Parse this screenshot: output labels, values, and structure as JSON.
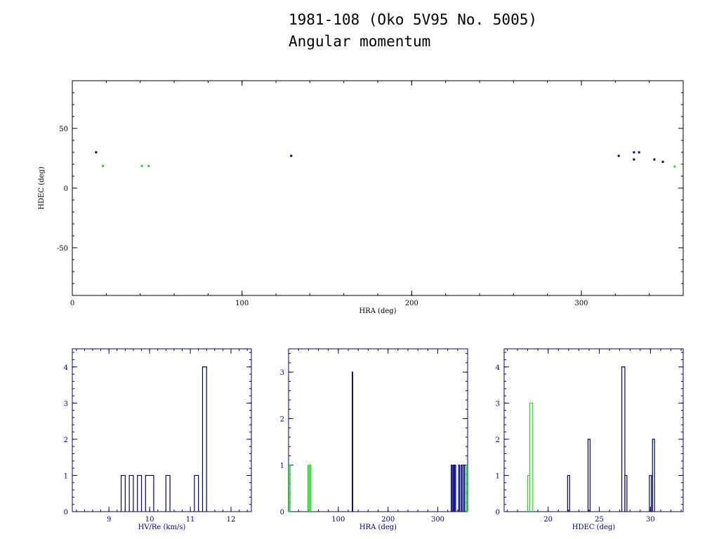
{
  "title": "1981-108 (Oko 5V95 No. 5005)",
  "subtitle": "Angular momentum",
  "colors": {
    "primary": "#000080",
    "secondary": "#22dd22",
    "axis_main": "#000000",
    "axis_hist": "#00008b"
  },
  "chart_data": [
    {
      "type": "scatter",
      "xlabel": "HRA (deg)",
      "ylabel": "HDEC (deg)",
      "xlim": [
        0,
        360
      ],
      "ylim": [
        -90,
        90
      ],
      "xticks": [
        0,
        100,
        200,
        300
      ],
      "yticks": [
        -50,
        0,
        50
      ],
      "series": [
        {
          "color": "#000080",
          "points": [
            [
              14,
              30
            ],
            [
              129,
              27
            ],
            [
              322,
              27
            ],
            [
              331,
              30
            ],
            [
              331,
              24
            ],
            [
              334,
              30
            ],
            [
              343,
              24
            ],
            [
              348,
              22
            ]
          ]
        },
        {
          "color": "#22dd22",
          "points": [
            [
              18,
              18.5
            ],
            [
              41,
              18.5
            ],
            [
              45,
              18.5
            ],
            [
              355,
              18
            ]
          ]
        }
      ]
    },
    {
      "type": "bar",
      "xlabel": "HV/Re (km/s)",
      "xlim": [
        8.1,
        12.5
      ],
      "ylim": [
        0,
        4.5
      ],
      "xticks": [
        9,
        10,
        11,
        12
      ],
      "yticks": [
        0,
        1,
        2,
        3,
        4
      ],
      "series": [
        {
          "color": "#000080",
          "bins": [
            [
              9.3,
              9.4,
              1
            ],
            [
              9.5,
              9.6,
              1
            ],
            [
              9.7,
              9.8,
              1
            ],
            [
              9.9,
              10.1,
              1
            ],
            [
              10.4,
              10.5,
              1
            ],
            [
              11.1,
              11.2,
              1
            ],
            [
              11.3,
              11.4,
              4
            ]
          ]
        }
      ]
    },
    {
      "type": "bar",
      "xlabel": "HRA (deg)",
      "xlim": [
        0,
        360
      ],
      "ylim": [
        0,
        3.5
      ],
      "xticks": [
        100,
        200,
        300
      ],
      "yticks": [
        0,
        1,
        2,
        3
      ],
      "series": [
        {
          "color": "#000080",
          "bins": [
            [
              128,
              129,
              3
            ],
            [
              327,
              329,
              1
            ],
            [
              331,
              333,
              1
            ],
            [
              334,
              336,
              1
            ],
            [
              342,
              344,
              1
            ],
            [
              347,
              349,
              1
            ],
            [
              352,
              354,
              1
            ]
          ]
        },
        {
          "color": "#22dd22",
          "bins": [
            [
              1,
              3,
              1
            ],
            [
              39,
              41,
              1
            ],
            [
              43,
              45,
              1
            ],
            [
              357,
              359,
              1
            ]
          ]
        }
      ]
    },
    {
      "type": "bar",
      "xlabel": "HDEC (deg)",
      "xlim": [
        15.7,
        33.2
      ],
      "ylim": [
        0,
        4.5
      ],
      "xticks": [
        20,
        25,
        30
      ],
      "yticks": [
        0,
        1,
        2,
        3,
        4
      ],
      "series": [
        {
          "color": "#000080",
          "bins": [
            [
              21.9,
              22.1,
              1
            ],
            [
              23.9,
              24.1,
              2
            ],
            [
              27.2,
              27.5,
              4
            ],
            [
              27.5,
              27.7,
              1
            ],
            [
              29.9,
              30.1,
              1
            ],
            [
              30.2,
              30.4,
              2
            ]
          ]
        },
        {
          "color": "#22dd22",
          "bins": [
            [
              18.0,
              18.2,
              1
            ],
            [
              18.2,
              18.5,
              3
            ]
          ]
        }
      ]
    }
  ]
}
